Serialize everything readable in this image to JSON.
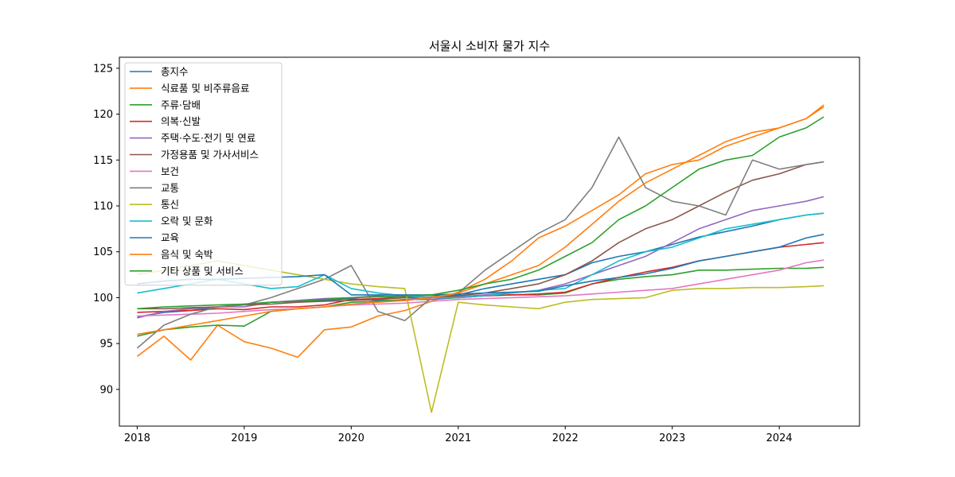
{
  "chart_data": {
    "type": "line",
    "title": "서울시 소비자 물가 지수",
    "xlabel": "",
    "ylabel": "",
    "x_tick_labels": [
      "2018",
      "2019",
      "2020",
      "2021",
      "2022",
      "2023",
      "2024"
    ],
    "y_ticks": [
      90,
      95,
      100,
      105,
      110,
      115,
      120,
      125
    ],
    "xlim": [
      "2017-11",
      "2024-10"
    ],
    "ylim": [
      86,
      126.2
    ],
    "grid": false,
    "legend_position": "top-left",
    "x": [
      "2018-01",
      "2018-04",
      "2018-07",
      "2018-10",
      "2019-01",
      "2019-04",
      "2019-07",
      "2019-10",
      "2020-01",
      "2020-04",
      "2020-07",
      "2020-10",
      "2021-01",
      "2021-04",
      "2021-07",
      "2021-10",
      "2022-01",
      "2022-04",
      "2022-07",
      "2022-10",
      "2023-01",
      "2023-04",
      "2023-07",
      "2023-10",
      "2024-01",
      "2024-04",
      "2024-06"
    ],
    "series": [
      {
        "name": "총지수",
        "color": "#1f77b4",
        "values": [
          97.9,
          98.4,
          98.6,
          99.0,
          99.3,
          99.5,
          99.6,
          99.7,
          99.9,
          99.7,
          99.7,
          100.0,
          100.3,
          101.0,
          101.5,
          102.0,
          102.5,
          103.8,
          104.5,
          105.0,
          105.8,
          106.6,
          107.2,
          107.8,
          108.5,
          109.0,
          109.2
        ]
      },
      {
        "name": "식료품 및 비주류음료",
        "color": "#ff7f0e",
        "values": [
          93.6,
          95.8,
          93.2,
          97.0,
          95.2,
          94.5,
          93.5,
          96.5,
          96.8,
          98.0,
          98.6,
          99.6,
          100.6,
          102.0,
          104.0,
          106.5,
          107.8,
          109.5,
          111.2,
          113.5,
          114.5,
          115.0,
          116.5,
          117.5,
          118.5,
          119.5,
          121.0
        ]
      },
      {
        "name": "주류·담배",
        "color": "#2ca02c",
        "values": [
          95.8,
          96.5,
          96.8,
          97.0,
          96.9,
          98.5,
          98.8,
          99.0,
          99.5,
          99.6,
          99.8,
          99.8,
          100.0,
          100.2,
          100.3,
          100.3,
          100.5,
          101.5,
          102.0,
          102.3,
          102.5,
          103.0,
          103.0,
          103.1,
          103.2,
          103.2,
          103.3
        ]
      },
      {
        "name": "의복·신발",
        "color": "#d62728",
        "values": [
          98.4,
          98.5,
          98.6,
          98.8,
          98.7,
          99.0,
          99.0,
          99.2,
          99.8,
          99.9,
          100.1,
          100.3,
          100.0,
          100.2,
          100.3,
          100.4,
          100.6,
          101.5,
          102.2,
          102.8,
          103.3,
          104.0,
          104.5,
          105.0,
          105.5,
          105.8,
          106.0
        ]
      },
      {
        "name": "주택·수도·전기 및 연료",
        "color": "#9467bd",
        "values": [
          97.8,
          98.5,
          98.8,
          99.0,
          99.0,
          99.5,
          99.7,
          99.9,
          100.0,
          100.2,
          100.0,
          99.8,
          100.1,
          100.3,
          100.5,
          100.8,
          101.5,
          102.5,
          103.5,
          104.5,
          106.0,
          107.5,
          108.5,
          109.5,
          110.0,
          110.5,
          111.0
        ]
      },
      {
        "name": "가정용품 및 가사서비스",
        "color": "#8c564b",
        "values": [
          98.8,
          98.8,
          98.9,
          99.0,
          99.2,
          99.3,
          99.5,
          99.6,
          99.7,
          99.8,
          100.0,
          100.1,
          100.2,
          100.5,
          101.0,
          101.5,
          102.5,
          104.0,
          106.0,
          107.5,
          108.5,
          110.0,
          111.5,
          112.8,
          113.5,
          114.5,
          114.8
        ]
      },
      {
        "name": "보건",
        "color": "#e377c2",
        "values": [
          98.0,
          98.1,
          98.2,
          98.3,
          98.5,
          98.7,
          98.8,
          99.0,
          99.2,
          99.3,
          99.4,
          99.6,
          99.8,
          99.9,
          100.0,
          100.1,
          100.2,
          100.4,
          100.6,
          100.8,
          101.0,
          101.5,
          102.0,
          102.5,
          103.0,
          103.8,
          104.1
        ]
      },
      {
        "name": "교통",
        "color": "#7f7f7f",
        "values": [
          94.5,
          97.0,
          98.2,
          99.0,
          99.2,
          100.0,
          101.0,
          102.0,
          103.5,
          98.5,
          97.5,
          100.0,
          100.5,
          103.0,
          105.0,
          107.0,
          108.5,
          112.0,
          117.5,
          112.0,
          110.5,
          110.0,
          109.0,
          115.0,
          114.0,
          114.5,
          114.8
        ]
      },
      {
        "name": "통신",
        "color": "#bcbd22",
        "values": [
          102.5,
          103.0,
          103.5,
          104.0,
          103.5,
          103.0,
          102.5,
          102.0,
          101.5,
          101.2,
          101.0,
          87.5,
          99.5,
          99.2,
          99.0,
          98.8,
          99.5,
          99.8,
          99.9,
          100.0,
          100.8,
          101.0,
          101.0,
          101.1,
          101.1,
          101.2,
          101.3
        ]
      },
      {
        "name": "오락 및 문화",
        "color": "#17becf",
        "values": [
          100.5,
          101.0,
          101.5,
          102.0,
          101.5,
          101.0,
          101.2,
          102.5,
          101.0,
          100.5,
          100.2,
          100.0,
          100.0,
          100.2,
          100.5,
          100.8,
          101.0,
          102.5,
          104.0,
          105.0,
          105.5,
          106.5,
          107.5,
          108.0,
          108.5,
          109.0,
          109.2
        ]
      },
      {
        "name": "교육",
        "color": "#1f77b4",
        "values": [
          101.5,
          101.8,
          102.0,
          102.0,
          102.1,
          102.2,
          102.3,
          102.5,
          100.3,
          100.3,
          100.3,
          100.3,
          100.4,
          100.5,
          100.6,
          100.7,
          101.3,
          101.8,
          102.2,
          102.6,
          103.2,
          104.0,
          104.5,
          105.0,
          105.5,
          106.5,
          106.9
        ]
      },
      {
        "name": "음식 및 숙박",
        "color": "#ff7f0e",
        "values": [
          96.0,
          96.5,
          97.0,
          97.5,
          98.0,
          98.5,
          98.8,
          99.0,
          99.3,
          99.5,
          99.7,
          100.0,
          100.5,
          101.5,
          102.5,
          103.5,
          105.5,
          108.0,
          110.5,
          112.5,
          114.0,
          115.5,
          117.0,
          118.0,
          118.5,
          119.5,
          120.8
        ]
      },
      {
        "name": "기타 상품 및 서비스",
        "color": "#2ca02c",
        "values": [
          98.8,
          99.0,
          99.1,
          99.2,
          99.3,
          99.5,
          99.6,
          99.8,
          100.0,
          100.1,
          100.2,
          100.3,
          100.8,
          101.5,
          102.0,
          103.0,
          104.5,
          106.0,
          108.5,
          110.0,
          112.0,
          114.0,
          115.0,
          115.5,
          117.5,
          118.5,
          119.7
        ]
      }
    ]
  }
}
